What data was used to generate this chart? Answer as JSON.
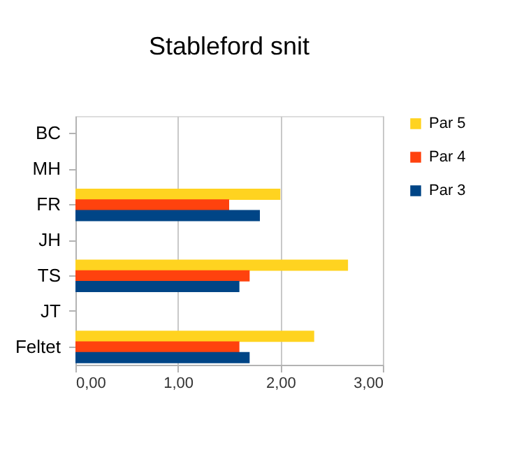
{
  "chart_data": {
    "type": "bar",
    "title": "Stableford snit",
    "orientation": "horizontal",
    "categories": [
      "BC",
      "MH",
      "FR",
      "JH",
      "TS",
      "JT",
      "Feltet"
    ],
    "series": [
      {
        "name": "Par 5",
        "color": "#ffd320",
        "values": [
          null,
          null,
          2.0,
          null,
          2.66,
          null,
          2.33
        ]
      },
      {
        "name": "Par 4",
        "color": "#ff420e",
        "values": [
          null,
          null,
          1.5,
          null,
          1.7,
          null,
          1.6
        ]
      },
      {
        "name": "Par 3",
        "color": "#004586",
        "values": [
          null,
          null,
          1.8,
          null,
          1.6,
          null,
          1.7
        ]
      }
    ],
    "xlim": [
      0,
      3
    ],
    "xticks": [
      {
        "value": 0,
        "label": "0,00"
      },
      {
        "value": 1,
        "label": "1,00"
      },
      {
        "value": 2,
        "label": "2,00"
      },
      {
        "value": 3,
        "label": "3,00"
      }
    ],
    "grid": "x",
    "legend": "right"
  }
}
